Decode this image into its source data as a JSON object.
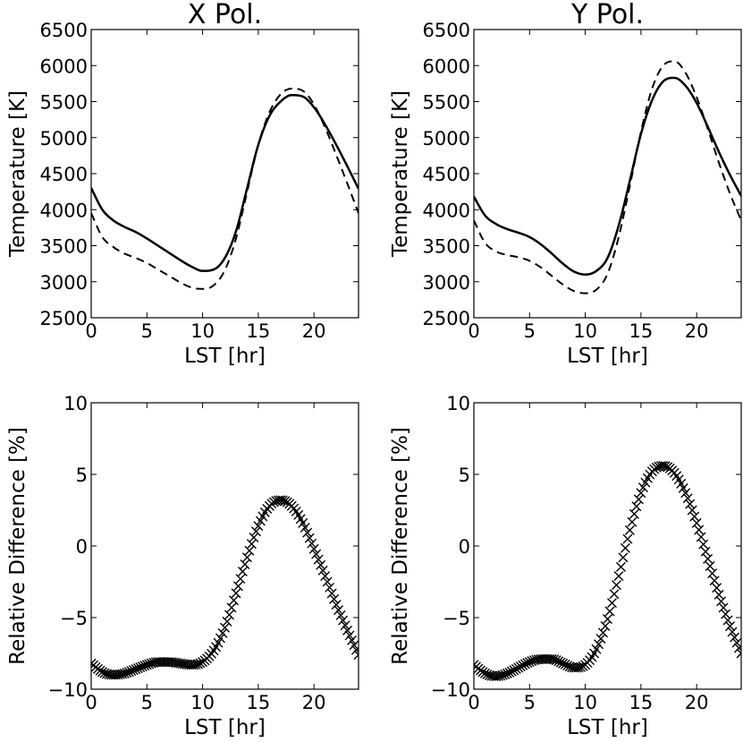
{
  "chart_data": [
    {
      "type": "line",
      "title": "X Pol.",
      "xlabel": "LST [hr]",
      "ylabel": "Temperature [K]",
      "xlim": [
        0,
        24
      ],
      "ylim": [
        2500,
        6500
      ],
      "xticks": [
        0,
        5,
        10,
        15,
        20
      ],
      "xtick_labels": [
        "0",
        "5",
        "10",
        "15",
        "20"
      ],
      "yticks": [
        2500,
        3000,
        3500,
        4000,
        4500,
        5000,
        5500,
        6000,
        6500
      ],
      "ytick_labels": [
        "2500",
        "3000",
        "3500",
        "4000",
        "4500",
        "5000",
        "5500",
        "6000",
        "6500"
      ],
      "grid": false,
      "series": [
        {
          "name": "solid",
          "style": "solid",
          "x": [
            0,
            1,
            2,
            3,
            4,
            5,
            6,
            7,
            8,
            9,
            10,
            11,
            12,
            13,
            14,
            15,
            16,
            17,
            18,
            19,
            20,
            21,
            22,
            23,
            24
          ],
          "values": [
            4300,
            4000,
            3850,
            3760,
            3690,
            3600,
            3500,
            3400,
            3300,
            3210,
            3150,
            3170,
            3330,
            3700,
            4300,
            4900,
            5300,
            5500,
            5590,
            5570,
            5420,
            5180,
            4900,
            4600,
            4290
          ]
        },
        {
          "name": "dashed",
          "style": "dashed",
          "x": [
            0,
            1,
            2,
            3,
            4,
            5,
            6,
            7,
            8,
            9,
            10,
            11,
            12,
            13,
            14,
            15,
            16,
            17,
            18,
            19,
            20,
            21,
            22,
            23,
            24
          ],
          "values": [
            3950,
            3620,
            3480,
            3390,
            3330,
            3260,
            3170,
            3080,
            2990,
            2920,
            2900,
            2950,
            3160,
            3600,
            4250,
            4900,
            5350,
            5600,
            5680,
            5650,
            5460,
            5140,
            4760,
            4360,
            3950
          ]
        }
      ]
    },
    {
      "type": "line",
      "title": "Y Pol.",
      "xlabel": "LST [hr]",
      "ylabel": "Temperature [K]",
      "xlim": [
        0,
        24
      ],
      "ylim": [
        2500,
        6500
      ],
      "xticks": [
        0,
        5,
        10,
        15,
        20
      ],
      "xtick_labels": [
        "0",
        "5",
        "10",
        "15",
        "20"
      ],
      "yticks": [
        2500,
        3000,
        3500,
        4000,
        4500,
        5000,
        5500,
        6000,
        6500
      ],
      "ytick_labels": [
        "2500",
        "3000",
        "3500",
        "4000",
        "4500",
        "5000",
        "5500",
        "6000",
        "6500"
      ],
      "grid": false,
      "series": [
        {
          "name": "solid",
          "style": "solid",
          "x": [
            0,
            1,
            2,
            3,
            4,
            5,
            6,
            7,
            8,
            9,
            10,
            11,
            12,
            13,
            14,
            15,
            16,
            17,
            18,
            19,
            20,
            21,
            22,
            23,
            24
          ],
          "values": [
            4180,
            3920,
            3800,
            3730,
            3680,
            3620,
            3520,
            3390,
            3250,
            3140,
            3100,
            3150,
            3330,
            3780,
            4400,
            5050,
            5520,
            5780,
            5830,
            5720,
            5480,
            5150,
            4800,
            4480,
            4190
          ]
        },
        {
          "name": "dashed",
          "style": "dashed",
          "x": [
            0,
            1,
            2,
            3,
            4,
            5,
            6,
            7,
            8,
            9,
            10,
            11,
            12,
            13,
            14,
            15,
            16,
            17,
            18,
            19,
            20,
            21,
            22,
            23,
            24
          ],
          "values": [
            3850,
            3540,
            3420,
            3370,
            3340,
            3290,
            3200,
            3080,
            2960,
            2870,
            2840,
            2890,
            3110,
            3620,
            4330,
            5080,
            5680,
            6000,
            6060,
            5900,
            5560,
            5120,
            4650,
            4220,
            3850
          ]
        }
      ]
    },
    {
      "type": "scatter",
      "marker": "x",
      "xlabel": "LST [hr]",
      "ylabel": "Relative Difference [%]",
      "xlim": [
        0,
        24
      ],
      "ylim": [
        -10,
        10
      ],
      "xticks": [
        0,
        5,
        10,
        15,
        20
      ],
      "xtick_labels": [
        "0",
        "5",
        "10",
        "15",
        "20"
      ],
      "yticks": [
        -10,
        -5,
        0,
        5,
        10
      ],
      "ytick_labels": [
        "−10",
        "−5",
        "0",
        "5",
        "10"
      ],
      "grid": false,
      "sample_step": 0.2,
      "series": [
        {
          "name": "relative difference",
          "x": [
            0,
            1,
            2,
            3,
            4,
            5,
            6,
            7,
            8,
            9,
            10,
            11,
            12,
            13,
            14,
            15,
            16,
            17,
            18,
            19,
            20,
            21,
            22,
            23,
            24
          ],
          "values": [
            -8.2,
            -8.8,
            -9.0,
            -8.9,
            -8.6,
            -8.3,
            -8.1,
            -8.1,
            -8.2,
            -8.3,
            -8.1,
            -7.3,
            -5.7,
            -3.3,
            -0.8,
            1.4,
            2.8,
            3.2,
            2.8,
            1.6,
            -0.2,
            -2.1,
            -4.1,
            -5.9,
            -7.6
          ]
        }
      ]
    },
    {
      "type": "scatter",
      "marker": "x",
      "xlabel": "LST [hr]",
      "ylabel": "Relative Difference [%]",
      "xlim": [
        0,
        24
      ],
      "ylim": [
        -10,
        10
      ],
      "xticks": [
        0,
        5,
        10,
        15,
        20
      ],
      "xtick_labels": [
        "0",
        "5",
        "10",
        "15",
        "20"
      ],
      "yticks": [
        -10,
        -5,
        0,
        5,
        10
      ],
      "ytick_labels": [
        "−10",
        "−5",
        "0",
        "5",
        "10"
      ],
      "grid": false,
      "sample_step": 0.2,
      "series": [
        {
          "name": "relative difference",
          "x": [
            0,
            1,
            2,
            3,
            4,
            5,
            6,
            7,
            8,
            9,
            10,
            11,
            12,
            13,
            14,
            15,
            16,
            17,
            18,
            19,
            20,
            21,
            22,
            23,
            24
          ],
          "values": [
            -8.3,
            -8.9,
            -9.1,
            -8.9,
            -8.5,
            -8.1,
            -7.9,
            -7.9,
            -8.2,
            -8.5,
            -8.3,
            -7.2,
            -5.1,
            -2.1,
            1.1,
            3.7,
            5.2,
            5.6,
            5.1,
            3.7,
            1.6,
            -0.9,
            -3.4,
            -5.6,
            -7.5
          ]
        }
      ]
    }
  ]
}
